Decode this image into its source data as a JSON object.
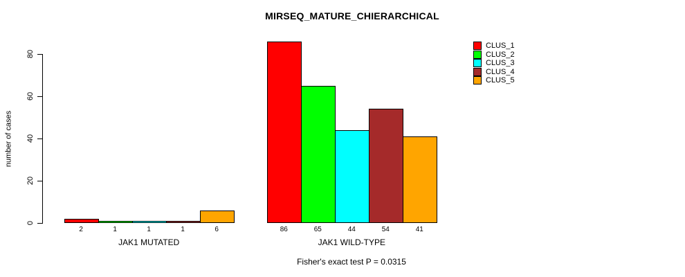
{
  "chart_data": {
    "type": "bar",
    "title": "MIRSEQ_MATURE_CHIERARCHICAL",
    "ylabel": "number of cases",
    "xlabel": "",
    "ylim": [
      0,
      80
    ],
    "yticks": [
      0,
      20,
      40,
      60,
      80
    ],
    "grid": false,
    "legend_position": "top-right",
    "legend_entries": [
      {
        "label": "CLUS_1",
        "color": "#FF0000"
      },
      {
        "label": "CLUS_2",
        "color": "#00FF00"
      },
      {
        "label": "CLUS_3",
        "color": "#00FFFF"
      },
      {
        "label": "CLUS_4",
        "color": "#A52A2A"
      },
      {
        "label": "CLUS_5",
        "color": "#FFA500"
      }
    ],
    "series_colors": [
      "#FF0000",
      "#00FF00",
      "#00FFFF",
      "#A52A2A",
      "#FFA500"
    ],
    "groups": [
      {
        "label": "JAK1 MUTATED",
        "values": [
          2,
          1,
          1,
          1,
          6
        ]
      },
      {
        "label": "JAK1 WILD-TYPE",
        "values": [
          86,
          65,
          44,
          54,
          41
        ]
      }
    ],
    "bar_value_labels": [
      [
        "2",
        "1",
        "1",
        "1",
        "6"
      ],
      [
        "86",
        "65",
        "44",
        "54",
        "41"
      ]
    ],
    "footnote": "Fisher's exact test P = 0.0315",
    "axis_color": "#000000",
    "background_color": "#FFFFFF"
  }
}
